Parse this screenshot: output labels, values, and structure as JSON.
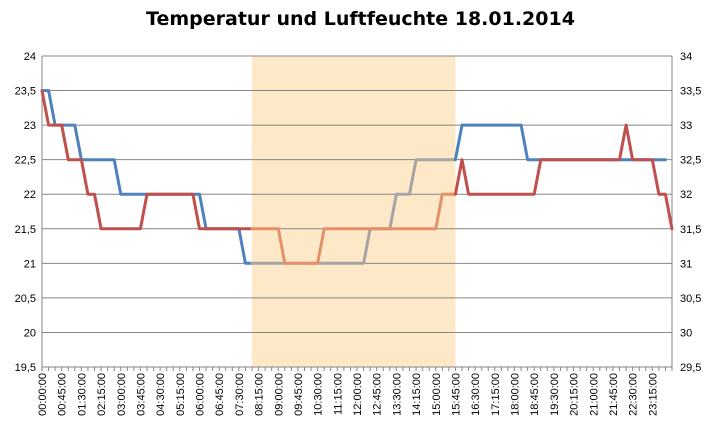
{
  "chart_data": {
    "type": "line",
    "title": "Temperatur und Luftfeuchte 18.01.2014",
    "x_tick_labels": [
      "00:00:00",
      "00:45:00",
      "01:30:00",
      "02:15:00",
      "03:00:00",
      "03:45:00",
      "04:30:00",
      "05:15:00",
      "06:00:00",
      "06:45:00",
      "07:30:00",
      "08:15:00",
      "09:00:00",
      "09:45:00",
      "10:30:00",
      "11:15:00",
      "12:00:00",
      "12:45:00",
      "13:30:00",
      "14:15:00",
      "15:00:00",
      "15:45:00",
      "16:30:00",
      "17:15:00",
      "18:00:00",
      "18:45:00",
      "19:30:00",
      "20:15:00",
      "21:00:00",
      "21:45:00",
      "22:30:00",
      "23:15:00"
    ],
    "y_left": {
      "min": 19.5,
      "max": 24,
      "ticks": [
        "24",
        "23,5",
        "23",
        "22,5",
        "22",
        "21,5",
        "21",
        "20,5",
        "20",
        "19,5"
      ]
    },
    "y_right": {
      "min": 29.5,
      "max": 34,
      "ticks": [
        "34",
        "33,5",
        "33",
        "32,5",
        "32",
        "31,5",
        "31",
        "30,5",
        "30",
        "29,5"
      ]
    },
    "grid": true,
    "highlight_range": [
      "08:00:00",
      "15:45:00"
    ],
    "colors": {
      "blue": "#4f81bd",
      "red": "#c0504d",
      "blue_in_range": "#a5a5a5",
      "red_in_range": "#e6906b",
      "highlight": "#fde9c8"
    },
    "series": [
      {
        "axis": "left",
        "color": "#4f81bd",
        "points": [
          [
            "00:00:00",
            23.5
          ],
          [
            "00:15:00",
            23.5
          ],
          [
            "00:30:00",
            23
          ],
          [
            "01:15:00",
            23
          ],
          [
            "01:30:00",
            22.5
          ],
          [
            "02:45:00",
            22.5
          ],
          [
            "03:00:00",
            22
          ],
          [
            "03:45:00",
            22
          ],
          [
            "06:00:00",
            22
          ],
          [
            "06:15:00",
            21.5
          ],
          [
            "07:30:00",
            21.5
          ],
          [
            "07:45:00",
            21
          ],
          [
            "09:00:00",
            21
          ],
          [
            "12:15:00",
            21
          ],
          [
            "12:30:00",
            21.5
          ],
          [
            "13:15:00",
            21.5
          ],
          [
            "13:30:00",
            22
          ],
          [
            "14:00:00",
            22
          ],
          [
            "14:15:00",
            22.5
          ],
          [
            "15:45:00",
            22.5
          ],
          [
            "16:00:00",
            23
          ],
          [
            "18:15:00",
            23
          ],
          [
            "18:30:00",
            22.5
          ],
          [
            "23:45:00",
            22.5
          ]
        ]
      },
      {
        "axis": "right",
        "color": "#c0504d",
        "points": [
          [
            "00:00:00",
            33.5
          ],
          [
            "00:15:00",
            33
          ],
          [
            "00:45:00",
            33
          ],
          [
            "01:00:00",
            32.5
          ],
          [
            "01:30:00",
            32.5
          ],
          [
            "01:45:00",
            32
          ],
          [
            "02:00:00",
            32
          ],
          [
            "02:15:00",
            31.5
          ],
          [
            "03:45:00",
            31.5
          ],
          [
            "04:00:00",
            32
          ],
          [
            "05:45:00",
            32
          ],
          [
            "06:00:00",
            31.5
          ],
          [
            "09:00:00",
            31.5
          ],
          [
            "09:15:00",
            31
          ],
          [
            "10:30:00",
            31
          ],
          [
            "10:45:00",
            31.5
          ],
          [
            "15:00:00",
            31.5
          ],
          [
            "15:15:00",
            32
          ],
          [
            "15:45:00",
            32
          ],
          [
            "16:00:00",
            32.5
          ],
          [
            "16:15:00",
            32
          ],
          [
            "18:45:00",
            32
          ],
          [
            "19:00:00",
            32.5
          ],
          [
            "22:00:00",
            32.5
          ],
          [
            "22:15:00",
            33
          ],
          [
            "22:30:00",
            32.5
          ],
          [
            "23:15:00",
            32.5
          ],
          [
            "23:30:00",
            32
          ],
          [
            "23:45:00",
            32
          ],
          [
            "24:00:00",
            31.5
          ]
        ]
      }
    ]
  }
}
